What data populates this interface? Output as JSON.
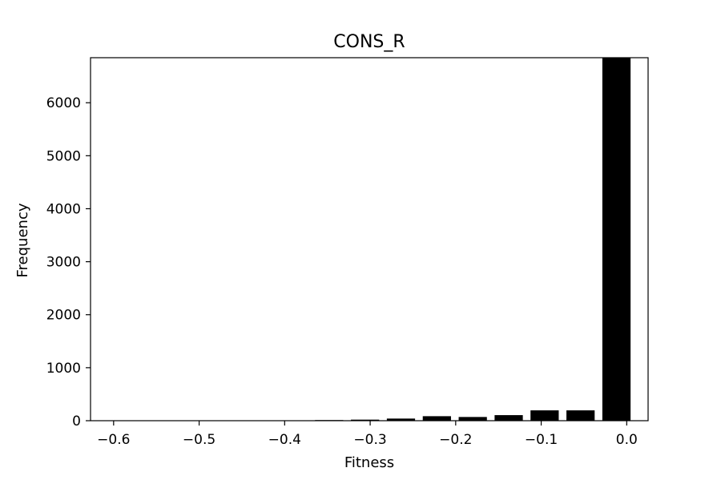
{
  "chart_data": {
    "type": "bar",
    "title": "CONS_R",
    "xlabel": "Fitness",
    "ylabel": "Frequency",
    "xlim": [
      -0.627,
      0.025
    ],
    "ylim": [
      0,
      6850
    ],
    "xticks": [
      -0.6,
      -0.5,
      -0.4,
      -0.3,
      -0.2,
      -0.1,
      0.0
    ],
    "xtick_labels": [
      "−0.6",
      "−0.5",
      "−0.4",
      "−0.3",
      "−0.2",
      "−0.1",
      "0.0"
    ],
    "yticks": [
      0,
      1000,
      2000,
      3000,
      4000,
      5000,
      6000
    ],
    "ytick_labels": [
      "0",
      "1000",
      "2000",
      "3000",
      "4000",
      "5000",
      "6000"
    ],
    "bar_width": 0.033,
    "bar_color": "#000000",
    "grid": false,
    "bins": [
      {
        "center": -0.6,
        "value": 1
      },
      {
        "center": -0.558,
        "value": 1
      },
      {
        "center": -0.516,
        "value": 1
      },
      {
        "center": -0.474,
        "value": 2
      },
      {
        "center": -0.432,
        "value": 4
      },
      {
        "center": -0.39,
        "value": 6
      },
      {
        "center": -0.348,
        "value": 12
      },
      {
        "center": -0.306,
        "value": 20
      },
      {
        "center": -0.264,
        "value": 40
      },
      {
        "center": -0.222,
        "value": 85
      },
      {
        "center": -0.18,
        "value": 70
      },
      {
        "center": -0.138,
        "value": 105
      },
      {
        "center": -0.096,
        "value": 195
      },
      {
        "center": -0.054,
        "value": 195
      },
      {
        "center": -0.012,
        "value": 6850
      }
    ]
  }
}
